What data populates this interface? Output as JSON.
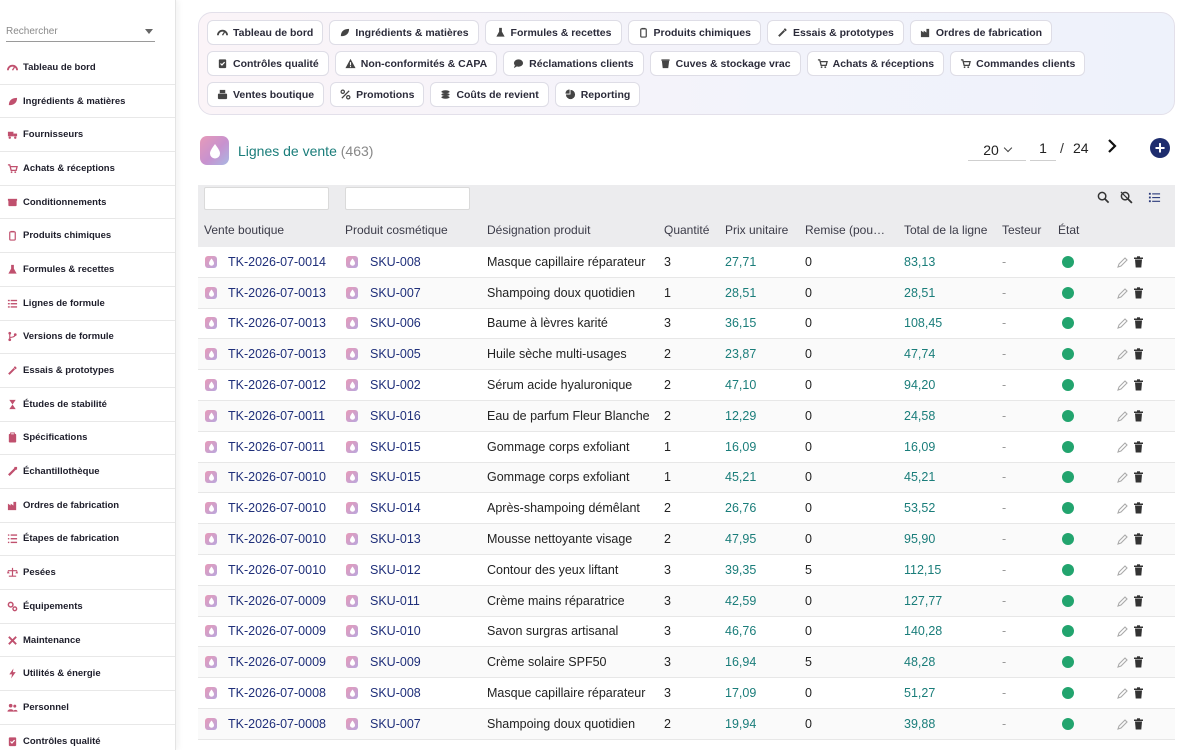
{
  "sidebar": {
    "search_placeholder": "Rechercher",
    "items": [
      {
        "label": "Tableau de bord",
        "icon": "dashboard-icon"
      },
      {
        "label": "Ingrédients & matières",
        "icon": "leaf-icon"
      },
      {
        "label": "Fournisseurs",
        "icon": "truck-icon"
      },
      {
        "label": "Achats & réceptions",
        "icon": "cart-icon"
      },
      {
        "label": "Conditionnements",
        "icon": "box-icon"
      },
      {
        "label": "Produits chimiques",
        "icon": "chemical-icon"
      },
      {
        "label": "Formules & recettes",
        "icon": "flask-icon"
      },
      {
        "label": "Lignes de formule",
        "icon": "list-icon"
      },
      {
        "label": "Versions de formule",
        "icon": "branch-icon"
      },
      {
        "label": "Essais & prototypes",
        "icon": "pipette-icon"
      },
      {
        "label": "Études de stabilité",
        "icon": "hourglass-icon"
      },
      {
        "label": "Spécifications",
        "icon": "clipboard-icon"
      },
      {
        "label": "Échantillothèque",
        "icon": "sample-icon"
      },
      {
        "label": "Ordres de fabrication",
        "icon": "factory-icon"
      },
      {
        "label": "Étapes de fabrication",
        "icon": "steps-icon"
      },
      {
        "label": "Pesées",
        "icon": "scale-icon"
      },
      {
        "label": "Équipements",
        "icon": "gears-icon"
      },
      {
        "label": "Maintenance",
        "icon": "tools-icon"
      },
      {
        "label": "Utilités & énergie",
        "icon": "bolt-icon"
      },
      {
        "label": "Personnel",
        "icon": "people-icon"
      },
      {
        "label": "Contrôles qualité",
        "icon": "check-icon"
      }
    ]
  },
  "modules": {
    "rows": [
      [
        {
          "label": "Tableau de bord",
          "icon": "dashboard-icon"
        },
        {
          "label": "Ingrédients & matières",
          "icon": "leaf-icon"
        },
        {
          "label": "Formules & recettes",
          "icon": "flask-icon"
        },
        {
          "label": "Produits chimiques",
          "icon": "chemical-icon"
        },
        {
          "label": "Essais & prototypes",
          "icon": "pipette-icon"
        },
        {
          "label": "Ordres de fabrication",
          "icon": "factory-icon"
        }
      ],
      [
        {
          "label": "Contrôles qualité",
          "icon": "check-icon"
        },
        {
          "label": "Non-conformités & CAPA",
          "icon": "warning-icon"
        },
        {
          "label": "Réclamations clients",
          "icon": "chat-icon"
        },
        {
          "label": "Cuves & stockage vrac",
          "icon": "tank-icon"
        },
        {
          "label": "Achats & réceptions",
          "icon": "cart-icon"
        },
        {
          "label": "Commandes clients",
          "icon": "cart-icon"
        }
      ],
      [
        {
          "label": "Ventes boutique",
          "icon": "register-icon"
        },
        {
          "label": "Promotions",
          "icon": "percent-icon"
        },
        {
          "label": "Coûts de revient",
          "icon": "coins-icon"
        },
        {
          "label": "Reporting",
          "icon": "pie-icon"
        }
      ]
    ]
  },
  "list": {
    "title": "Lignes de vente",
    "count": "(463)",
    "page_size": "20",
    "page": "1",
    "page_sep": "/",
    "total_pages": "24"
  },
  "table": {
    "columns": [
      "Vente boutique",
      "Produit cosmétique",
      "Désignation produit",
      "Quantité",
      "Prix unitaire",
      "Remise (pou…",
      "Total de la ligne",
      "Testeur",
      "État"
    ],
    "rows": [
      {
        "vente": "TK-2026-07-0014",
        "sku": "SKU-008",
        "designation": "Masque capillaire réparateur",
        "qty": "3",
        "prix": "27,71",
        "remise": "0",
        "total": "83,13",
        "testeur": "-"
      },
      {
        "vente": "TK-2026-07-0013",
        "sku": "SKU-007",
        "designation": "Shampoing doux quotidien",
        "qty": "1",
        "prix": "28,51",
        "remise": "0",
        "total": "28,51",
        "testeur": "-"
      },
      {
        "vente": "TK-2026-07-0013",
        "sku": "SKU-006",
        "designation": "Baume à lèvres karité",
        "qty": "3",
        "prix": "36,15",
        "remise": "0",
        "total": "108,45",
        "testeur": "-"
      },
      {
        "vente": "TK-2026-07-0013",
        "sku": "SKU-005",
        "designation": "Huile sèche multi-usages",
        "qty": "2",
        "prix": "23,87",
        "remise": "0",
        "total": "47,74",
        "testeur": "-"
      },
      {
        "vente": "TK-2026-07-0012",
        "sku": "SKU-002",
        "designation": "Sérum acide hyaluronique",
        "qty": "2",
        "prix": "47,10",
        "remise": "0",
        "total": "94,20",
        "testeur": "-"
      },
      {
        "vente": "TK-2026-07-0011",
        "sku": "SKU-016",
        "designation": "Eau de parfum Fleur Blanche",
        "qty": "2",
        "prix": "12,29",
        "remise": "0",
        "total": "24,58",
        "testeur": "-"
      },
      {
        "vente": "TK-2026-07-0011",
        "sku": "SKU-015",
        "designation": "Gommage corps exfoliant",
        "qty": "1",
        "prix": "16,09",
        "remise": "0",
        "total": "16,09",
        "testeur": "-"
      },
      {
        "vente": "TK-2026-07-0010",
        "sku": "SKU-015",
        "designation": "Gommage corps exfoliant",
        "qty": "1",
        "prix": "45,21",
        "remise": "0",
        "total": "45,21",
        "testeur": "-"
      },
      {
        "vente": "TK-2026-07-0010",
        "sku": "SKU-014",
        "designation": "Après-shampoing démêlant",
        "qty": "2",
        "prix": "26,76",
        "remise": "0",
        "total": "53,52",
        "testeur": "-"
      },
      {
        "vente": "TK-2026-07-0010",
        "sku": "SKU-013",
        "designation": "Mousse nettoyante visage",
        "qty": "2",
        "prix": "47,95",
        "remise": "0",
        "total": "95,90",
        "testeur": "-"
      },
      {
        "vente": "TK-2026-07-0010",
        "sku": "SKU-012",
        "designation": "Contour des yeux liftant",
        "qty": "3",
        "prix": "39,35",
        "remise": "5",
        "total": "112,15",
        "testeur": "-"
      },
      {
        "vente": "TK-2026-07-0009",
        "sku": "SKU-011",
        "designation": "Crème mains réparatrice",
        "qty": "3",
        "prix": "42,59",
        "remise": "0",
        "total": "127,77",
        "testeur": "-"
      },
      {
        "vente": "TK-2026-07-0009",
        "sku": "SKU-010",
        "designation": "Savon surgras artisanal",
        "qty": "3",
        "prix": "46,76",
        "remise": "0",
        "total": "140,28",
        "testeur": "-"
      },
      {
        "vente": "TK-2026-07-0009",
        "sku": "SKU-009",
        "designation": "Crème solaire SPF50",
        "qty": "3",
        "prix": "16,94",
        "remise": "5",
        "total": "48,28",
        "testeur": "-"
      },
      {
        "vente": "TK-2026-07-0008",
        "sku": "SKU-008",
        "designation": "Masque capillaire réparateur",
        "qty": "3",
        "prix": "17,09",
        "remise": "0",
        "total": "51,27",
        "testeur": "-"
      },
      {
        "vente": "TK-2026-07-0008",
        "sku": "SKU-007",
        "designation": "Shampoing doux quotidien",
        "qty": "2",
        "prix": "19,94",
        "remise": "0",
        "total": "39,88",
        "testeur": "-"
      }
    ]
  },
  "colors": {
    "accent_teal": "#1a7d7a",
    "link_navy": "#1f2f7a",
    "status_green": "#22a46e",
    "icon_pink": "#c0506e",
    "add_button": "#1e2d6e"
  }
}
